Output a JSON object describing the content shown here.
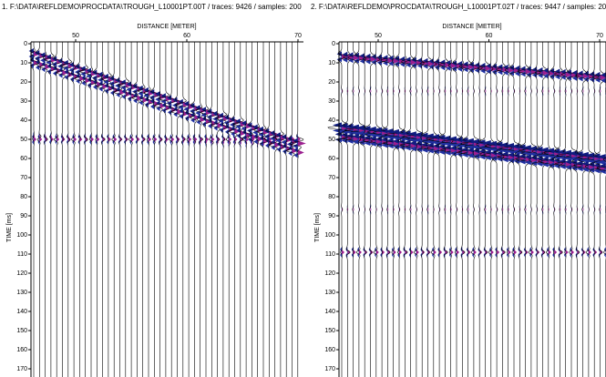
{
  "panels": [
    {
      "title": "1. F:\\DATA\\REFLDEMO\\PROCDATA\\TROUGH_L10001PT.00T / traces: 9426 / samples: 200",
      "x_label": "DISTANCE [METER]",
      "y_label": "TIME [ms]",
      "xticks": [
        50,
        60,
        70
      ],
      "yticks": [
        0,
        10,
        20,
        30,
        40,
        50,
        60,
        70,
        80,
        90,
        100,
        110,
        120,
        130,
        140,
        150,
        160,
        170
      ]
    },
    {
      "title": "2. F:\\DATA\\REFLDEMO\\PROCDATA\\TROUGH_L10001PT.02T / traces: 9447 / samples: 200",
      "x_label": "DISTANCE [METER]",
      "y_label": "TIME [ms]",
      "xticks": [
        50,
        60,
        70
      ],
      "yticks": [
        0,
        10,
        20,
        30,
        40,
        50,
        60,
        70,
        80,
        90,
        100,
        110,
        120,
        130,
        140,
        150,
        160,
        170
      ]
    }
  ]
}
